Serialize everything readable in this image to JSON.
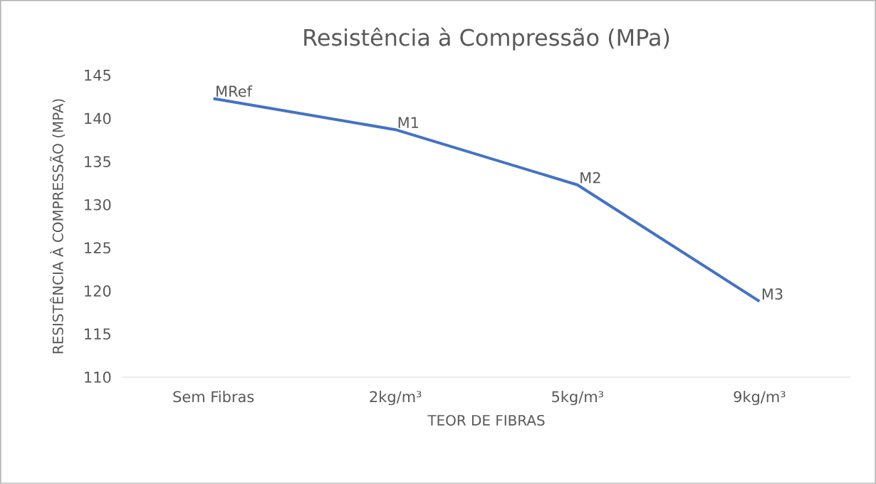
{
  "chart_data": {
    "type": "line",
    "title": "Resistência à Compressão (MPa)",
    "xlabel": "TEOR DE FIBRAS",
    "ylabel": "RESISTÊNCIA À COMPRESSÃO (MPA)",
    "categories": [
      "Sem Fibras",
      "2kg/m³",
      "5kg/m³",
      "9kg/m³"
    ],
    "values": [
      142.3,
      138.7,
      132.3,
      118.8
    ],
    "color": "#4472c4",
    "ylim": [
      110,
      145
    ],
    "yticks": [
      110,
      115,
      120,
      125,
      130,
      135,
      140,
      145
    ],
    "grid": false,
    "marker": "none",
    "line_style": "solid",
    "annotations": [
      {
        "text": "MRef",
        "x": "Sem Fibras",
        "y": 142.3
      },
      {
        "text": "M1",
        "x": "2kg/m³",
        "y": 138.7
      },
      {
        "text": "M2",
        "x": "5kg/m³",
        "y": 132.3
      },
      {
        "text": "M3",
        "x": "9kg/m³",
        "y": 118.8
      }
    ]
  }
}
